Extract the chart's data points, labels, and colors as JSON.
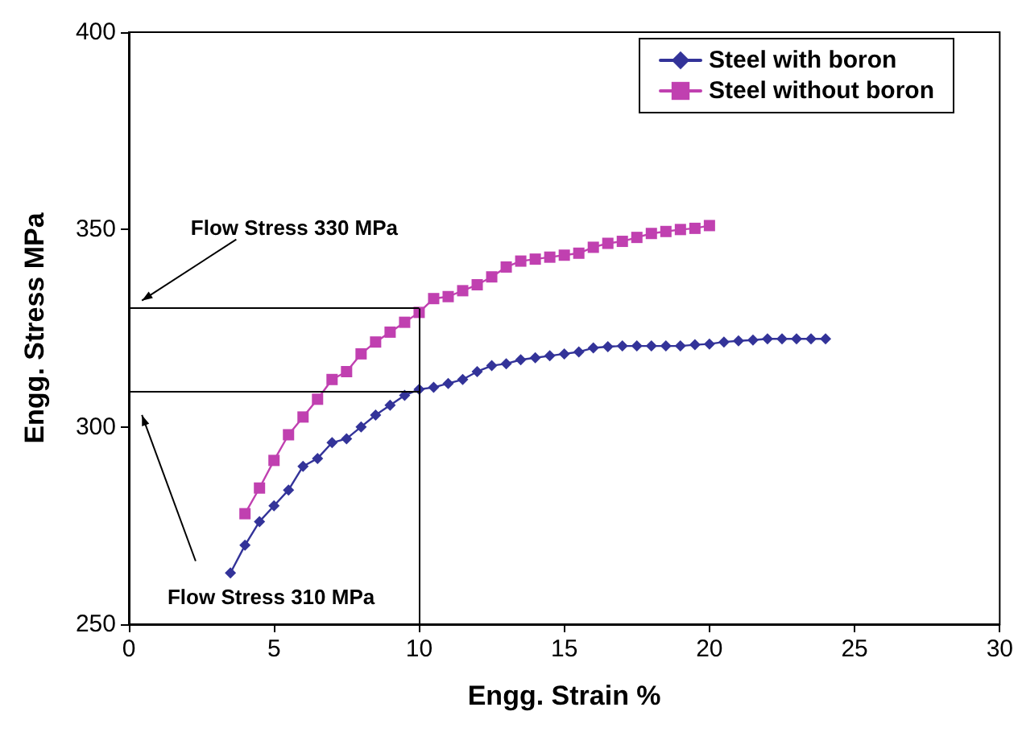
{
  "chart_data": {
    "type": "line",
    "xlabel": "Engg. Strain %",
    "ylabel": "Engg. Stress MPa",
    "xlim": [
      0,
      30
    ],
    "xticks": [
      0,
      5,
      10,
      15,
      20,
      25,
      30
    ],
    "ylim": [
      250,
      400
    ],
    "yticks": [
      250,
      300,
      350,
      400
    ],
    "grid": false,
    "legend": "top right",
    "series": [
      {
        "name": "Steel with boron",
        "color": "#333399",
        "marker": "diamond",
        "x": [
          3.5,
          4,
          4.5,
          5,
          5.5,
          6,
          6.5,
          7,
          7.5,
          8,
          8.5,
          9,
          9.5,
          10,
          10.5,
          11,
          11.5,
          12,
          12.5,
          13,
          13.5,
          14,
          14.5,
          15,
          15.5,
          16,
          16.5,
          17,
          17.5,
          18,
          18.5,
          19,
          19.5,
          20,
          20.5,
          21,
          21.5,
          22,
          22.5,
          23,
          23.5,
          24
        ],
        "values": [
          263,
          270,
          276,
          280,
          284,
          290,
          292,
          296,
          297,
          300,
          303,
          305.5,
          308,
          309.5,
          310,
          311,
          312,
          314,
          315.5,
          316,
          317,
          317.5,
          318,
          318.5,
          319,
          320,
          320.3,
          320.5,
          320.5,
          320.5,
          320.5,
          320.5,
          320.8,
          321,
          321.5,
          321.8,
          322,
          322.3,
          322.3,
          322.3,
          322.3,
          322.3
        ]
      },
      {
        "name": "Steel without boron",
        "color": "#c040b0",
        "marker": "square",
        "x": [
          4,
          4.5,
          5,
          5.5,
          6,
          6.5,
          7,
          7.5,
          8,
          8.5,
          9,
          9.5,
          10,
          10.5,
          11,
          11.5,
          12,
          12.5,
          13,
          13.5,
          14,
          14.5,
          15,
          15.5,
          16,
          16.5,
          17,
          17.5,
          18,
          18.5,
          19,
          19.5,
          20
        ],
        "values": [
          278,
          284.5,
          291.5,
          298,
          302.5,
          307,
          312,
          314,
          318.5,
          321.5,
          324,
          326.5,
          329,
          332.5,
          333,
          334.5,
          336,
          338,
          340.5,
          342,
          342.5,
          343,
          343.5,
          344,
          345.5,
          346.5,
          347,
          348,
          349,
          349.5,
          350,
          350.3,
          351
        ]
      }
    ],
    "ref_lines": [
      {
        "axis": "y",
        "value": 330,
        "label": "Flow Stress 330 MPa",
        "color": "#000000"
      },
      {
        "axis": "y",
        "value": 309,
        "color": "#000000"
      },
      {
        "axis": "x",
        "value": 10,
        "color": "#000000"
      }
    ],
    "annotations": [
      "Flow Stress 310 MPa"
    ]
  }
}
